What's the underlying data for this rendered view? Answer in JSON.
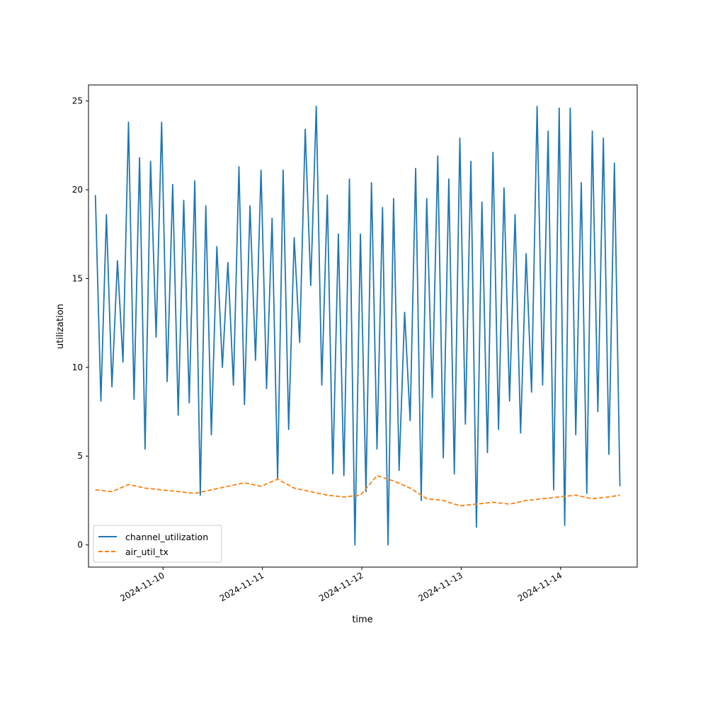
{
  "chart_data": {
    "type": "line",
    "title": "",
    "xlabel": "time",
    "ylabel": "utilization",
    "x_axis_type": "date",
    "xlim": [
      "2024-11-09T06:00",
      "2024-11-14T18:30"
    ],
    "ylim": [
      -1.25,
      25.9
    ],
    "x_ticks": [
      "2024-11-10",
      "2024-11-11",
      "2024-11-12",
      "2024-11-13",
      "2024-11-14"
    ],
    "y_ticks": [
      0,
      5,
      10,
      15,
      20,
      25
    ],
    "grid": false,
    "legend": "lower-left",
    "series": [
      {
        "name": "channel_utilization",
        "color": "#1f77b4",
        "style": "solid",
        "x": [
          "2024-11-09T07:40",
          "2024-11-09T09:00",
          "2024-11-09T10:20",
          "2024-11-09T11:40",
          "2024-11-09T13:00",
          "2024-11-09T14:20",
          "2024-11-09T15:40",
          "2024-11-09T17:00",
          "2024-11-09T18:20",
          "2024-11-09T19:40",
          "2024-11-09T21:00",
          "2024-11-09T22:20",
          "2024-11-09T23:40",
          "2024-11-10T01:00",
          "2024-11-10T02:20",
          "2024-11-10T03:40",
          "2024-11-10T05:00",
          "2024-11-10T06:20",
          "2024-11-10T07:40",
          "2024-11-10T09:00",
          "2024-11-10T10:20",
          "2024-11-10T11:40",
          "2024-11-10T13:00",
          "2024-11-10T14:20",
          "2024-11-10T15:40",
          "2024-11-10T17:00",
          "2024-11-10T18:20",
          "2024-11-10T19:40",
          "2024-11-10T21:00",
          "2024-11-10T22:20",
          "2024-11-10T23:40",
          "2024-11-11T01:00",
          "2024-11-11T02:20",
          "2024-11-11T03:40",
          "2024-11-11T05:00",
          "2024-11-11T06:20",
          "2024-11-11T07:40",
          "2024-11-11T09:00",
          "2024-11-11T10:20",
          "2024-11-11T11:40",
          "2024-11-11T13:00",
          "2024-11-11T14:20",
          "2024-11-11T15:40",
          "2024-11-11T17:00",
          "2024-11-11T18:20",
          "2024-11-11T19:40",
          "2024-11-11T21:00",
          "2024-11-11T22:20",
          "2024-11-11T23:40",
          "2024-11-12T01:00",
          "2024-11-12T02:20",
          "2024-11-12T03:40",
          "2024-11-12T05:00",
          "2024-11-12T06:20",
          "2024-11-12T07:40",
          "2024-11-12T09:00",
          "2024-11-12T10:20",
          "2024-11-12T11:40",
          "2024-11-12T13:00",
          "2024-11-12T14:20",
          "2024-11-12T15:40",
          "2024-11-12T17:00",
          "2024-11-12T18:20",
          "2024-11-12T19:40",
          "2024-11-12T21:00",
          "2024-11-12T22:20",
          "2024-11-12T23:40",
          "2024-11-13T01:00",
          "2024-11-13T02:20",
          "2024-11-13T03:40",
          "2024-11-13T05:00",
          "2024-11-13T06:20",
          "2024-11-13T07:40",
          "2024-11-13T09:00",
          "2024-11-13T10:20",
          "2024-11-13T11:40",
          "2024-11-13T13:00",
          "2024-11-13T14:20",
          "2024-11-13T15:40",
          "2024-11-13T17:00",
          "2024-11-13T18:20",
          "2024-11-13T19:40",
          "2024-11-13T21:00",
          "2024-11-13T22:20",
          "2024-11-13T23:40",
          "2024-11-14T01:00",
          "2024-11-14T02:20",
          "2024-11-14T03:40",
          "2024-11-14T05:00",
          "2024-11-14T06:20",
          "2024-11-14T07:40",
          "2024-11-14T09:00",
          "2024-11-14T10:20",
          "2024-11-14T11:40",
          "2024-11-14T13:00",
          "2024-11-14T14:20"
        ],
        "values": [
          19.7,
          8.1,
          18.6,
          8.9,
          16.0,
          10.3,
          23.8,
          8.2,
          21.8,
          5.4,
          21.6,
          11.7,
          23.8,
          9.2,
          20.3,
          7.3,
          19.4,
          8.0,
          20.5,
          2.8,
          19.1,
          6.2,
          16.8,
          10.0,
          15.9,
          9.0,
          21.3,
          7.9,
          19.1,
          10.4,
          21.1,
          8.8,
          18.4,
          3.7,
          21.1,
          6.5,
          17.3,
          11.4,
          23.4,
          14.6,
          24.7,
          9.0,
          19.7,
          4.0,
          17.5,
          3.9,
          20.6,
          0.0,
          17.5,
          3.0,
          20.4,
          5.4,
          19.0,
          0.0,
          19.5,
          4.2,
          13.1,
          7.0,
          21.2,
          2.5,
          19.5,
          8.3,
          21.9,
          4.9,
          20.6,
          4.0,
          22.9,
          6.8,
          21.6,
          1.0,
          19.3,
          5.2,
          22.1,
          6.5,
          20.1,
          8.1,
          18.6,
          6.3,
          16.4,
          8.6,
          24.7,
          9.0,
          23.3,
          3.1,
          24.6,
          1.1,
          24.6,
          6.2,
          20.4,
          2.9,
          23.3,
          7.5,
          22.9,
          5.1,
          21.5,
          3.3
        ]
      },
      {
        "name": "air_util_tx",
        "color": "#ff7f0e",
        "style": "dashed",
        "x": [
          "2024-11-09T07:40",
          "2024-11-09T11:40",
          "2024-11-09T15:40",
          "2024-11-09T19:40",
          "2024-11-09T23:40",
          "2024-11-10T03:40",
          "2024-11-10T07:40",
          "2024-11-10T11:40",
          "2024-11-10T15:40",
          "2024-11-10T19:40",
          "2024-11-10T23:40",
          "2024-11-11T03:40",
          "2024-11-11T07:40",
          "2024-11-11T11:40",
          "2024-11-11T15:40",
          "2024-11-11T19:40",
          "2024-11-11T23:40",
          "2024-11-12T03:40",
          "2024-11-12T07:40",
          "2024-11-12T11:40",
          "2024-11-12T15:40",
          "2024-11-12T19:40",
          "2024-11-12T23:40",
          "2024-11-13T03:40",
          "2024-11-13T07:40",
          "2024-11-13T11:40",
          "2024-11-13T15:40",
          "2024-11-13T19:40",
          "2024-11-13T23:40",
          "2024-11-14T03:40",
          "2024-11-14T07:40",
          "2024-11-14T11:40",
          "2024-11-14T14:20"
        ],
        "values": [
          3.1,
          3.0,
          3.4,
          3.2,
          3.1,
          3.0,
          2.9,
          3.1,
          3.3,
          3.5,
          3.3,
          3.7,
          3.2,
          3.0,
          2.8,
          2.7,
          2.8,
          3.9,
          3.6,
          3.2,
          2.6,
          2.5,
          2.2,
          2.3,
          2.4,
          2.3,
          2.5,
          2.6,
          2.7,
          2.8,
          2.6,
          2.7,
          2.8
        ]
      }
    ]
  }
}
